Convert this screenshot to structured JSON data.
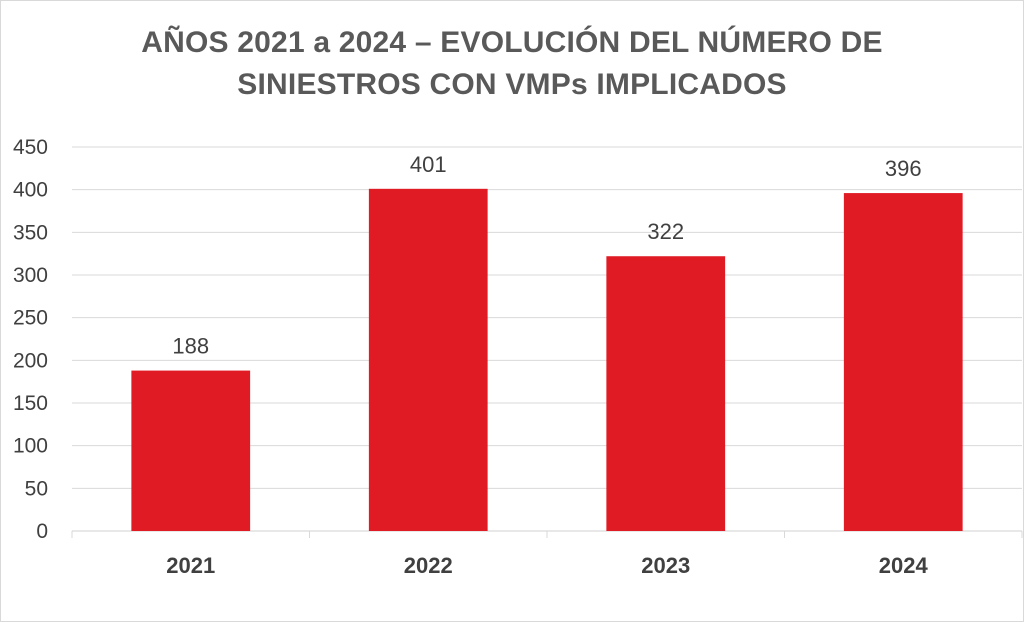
{
  "chart_data": {
    "type": "bar",
    "title_lines": [
      "AÑOS 2021 a 2024 – EVOLUCIÓN DEL NÚMERO DE",
      "SINIESTROS CON VMPs IMPLICADOS"
    ],
    "categories": [
      "2021",
      "2022",
      "2023",
      "2024"
    ],
    "values": [
      188,
      401,
      322,
      396
    ],
    "data_labels": [
      "188",
      "401",
      "322",
      "396"
    ],
    "ylim": [
      0,
      450
    ],
    "yticks": [
      0,
      50,
      100,
      150,
      200,
      250,
      300,
      350,
      400,
      450
    ],
    "grid": true,
    "legend": "none",
    "xlabel": "",
    "ylabel": ""
  },
  "colors": {
    "bar": "#e01b24",
    "grid": "#d9d9d9",
    "text": "#404040",
    "title": "#595959"
  }
}
